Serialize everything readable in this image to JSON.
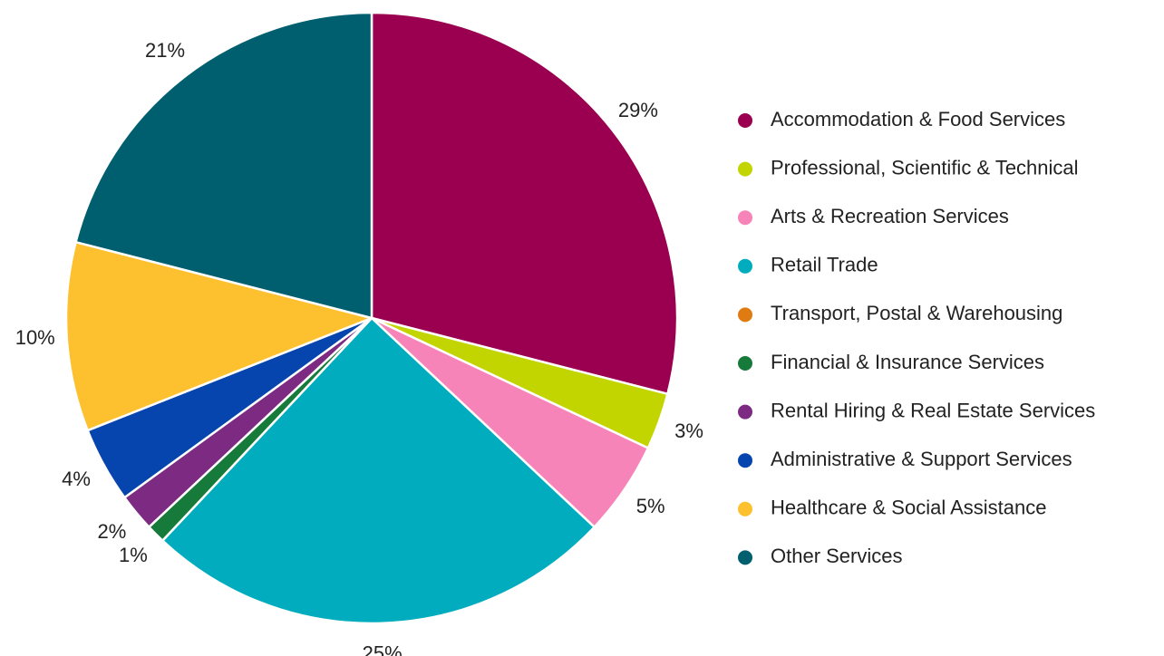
{
  "chart_data": {
    "type": "pie",
    "categories": [
      "Accommodation & Food Services",
      "Professional, Scientific & Technical",
      "Arts & Recreation Services",
      "Retail Trade",
      "Transport, Postal & Warehousing",
      "Financial & Insurance Services",
      "Rental Hiring & Real Estate Services",
      "Administrative & Support Services",
      "Healthcare & Social Assistance",
      "Other Services"
    ],
    "values": [
      29,
      3,
      5,
      25,
      0,
      1,
      2,
      4,
      10,
      21
    ],
    "value_labels": [
      "29%",
      "3%",
      "5%",
      "25%",
      null,
      "1%",
      "2%",
      "4%",
      "10%",
      "21%"
    ],
    "colors": [
      "#9b0050",
      "#c2d500",
      "#f784b8",
      "#00acbd",
      "#e07b12",
      "#167a3a",
      "#7c2a82",
      "#0645ad",
      "#fdc02f",
      "#005f6f"
    ],
    "legend": "right"
  }
}
